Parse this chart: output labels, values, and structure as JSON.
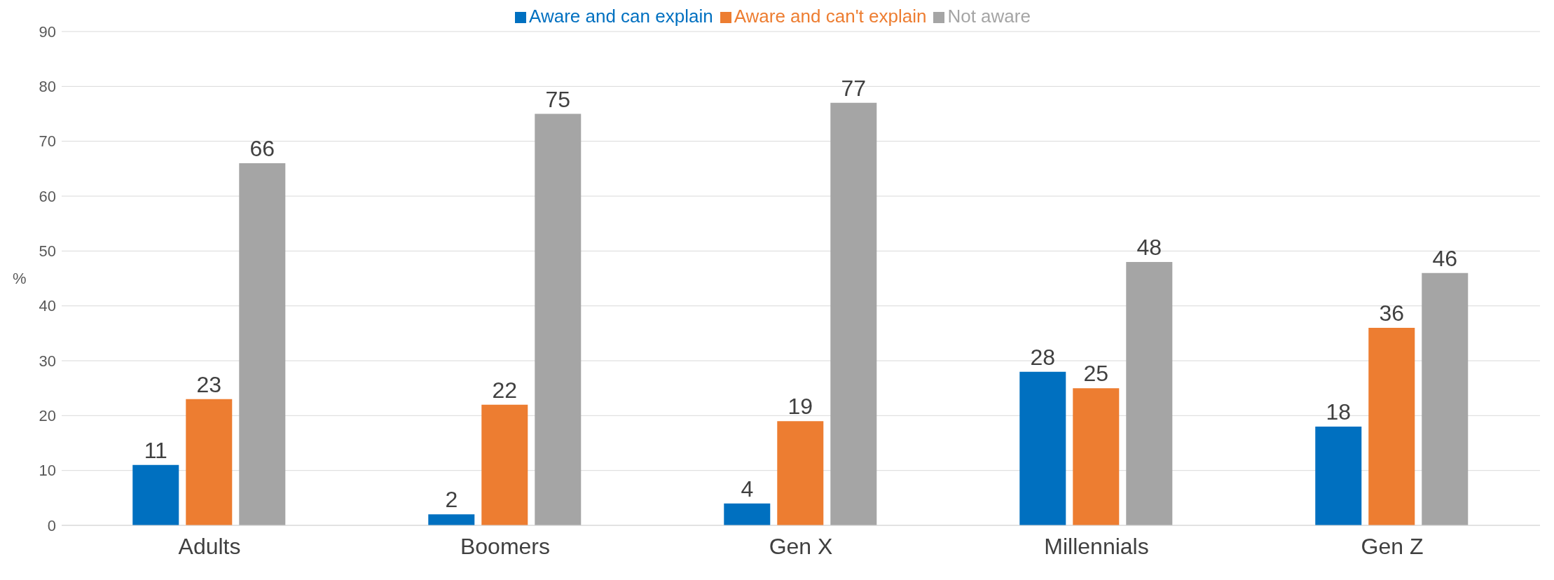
{
  "chart_data": {
    "type": "bar",
    "ylabel": "%",
    "categories": [
      "Adults",
      "Boomers",
      "Gen X",
      "Millennials",
      "Gen Z"
    ],
    "series": [
      {
        "name": "Aware and can explain",
        "color": "#0070c0",
        "values": [
          11,
          2,
          4,
          28,
          18
        ]
      },
      {
        "name": "Aware and can't explain",
        "color": "#ed7d31",
        "values": [
          23,
          22,
          19,
          25,
          36
        ]
      },
      {
        "name": "Not aware",
        "color": "#a5a5a5",
        "values": [
          66,
          75,
          77,
          48,
          46
        ]
      }
    ],
    "ylim": [
      0,
      90
    ],
    "yticks": [
      0,
      10,
      20,
      30,
      40,
      50,
      60,
      70,
      80,
      90
    ],
    "grid": "y",
    "legend": "top",
    "data_labels": true
  }
}
